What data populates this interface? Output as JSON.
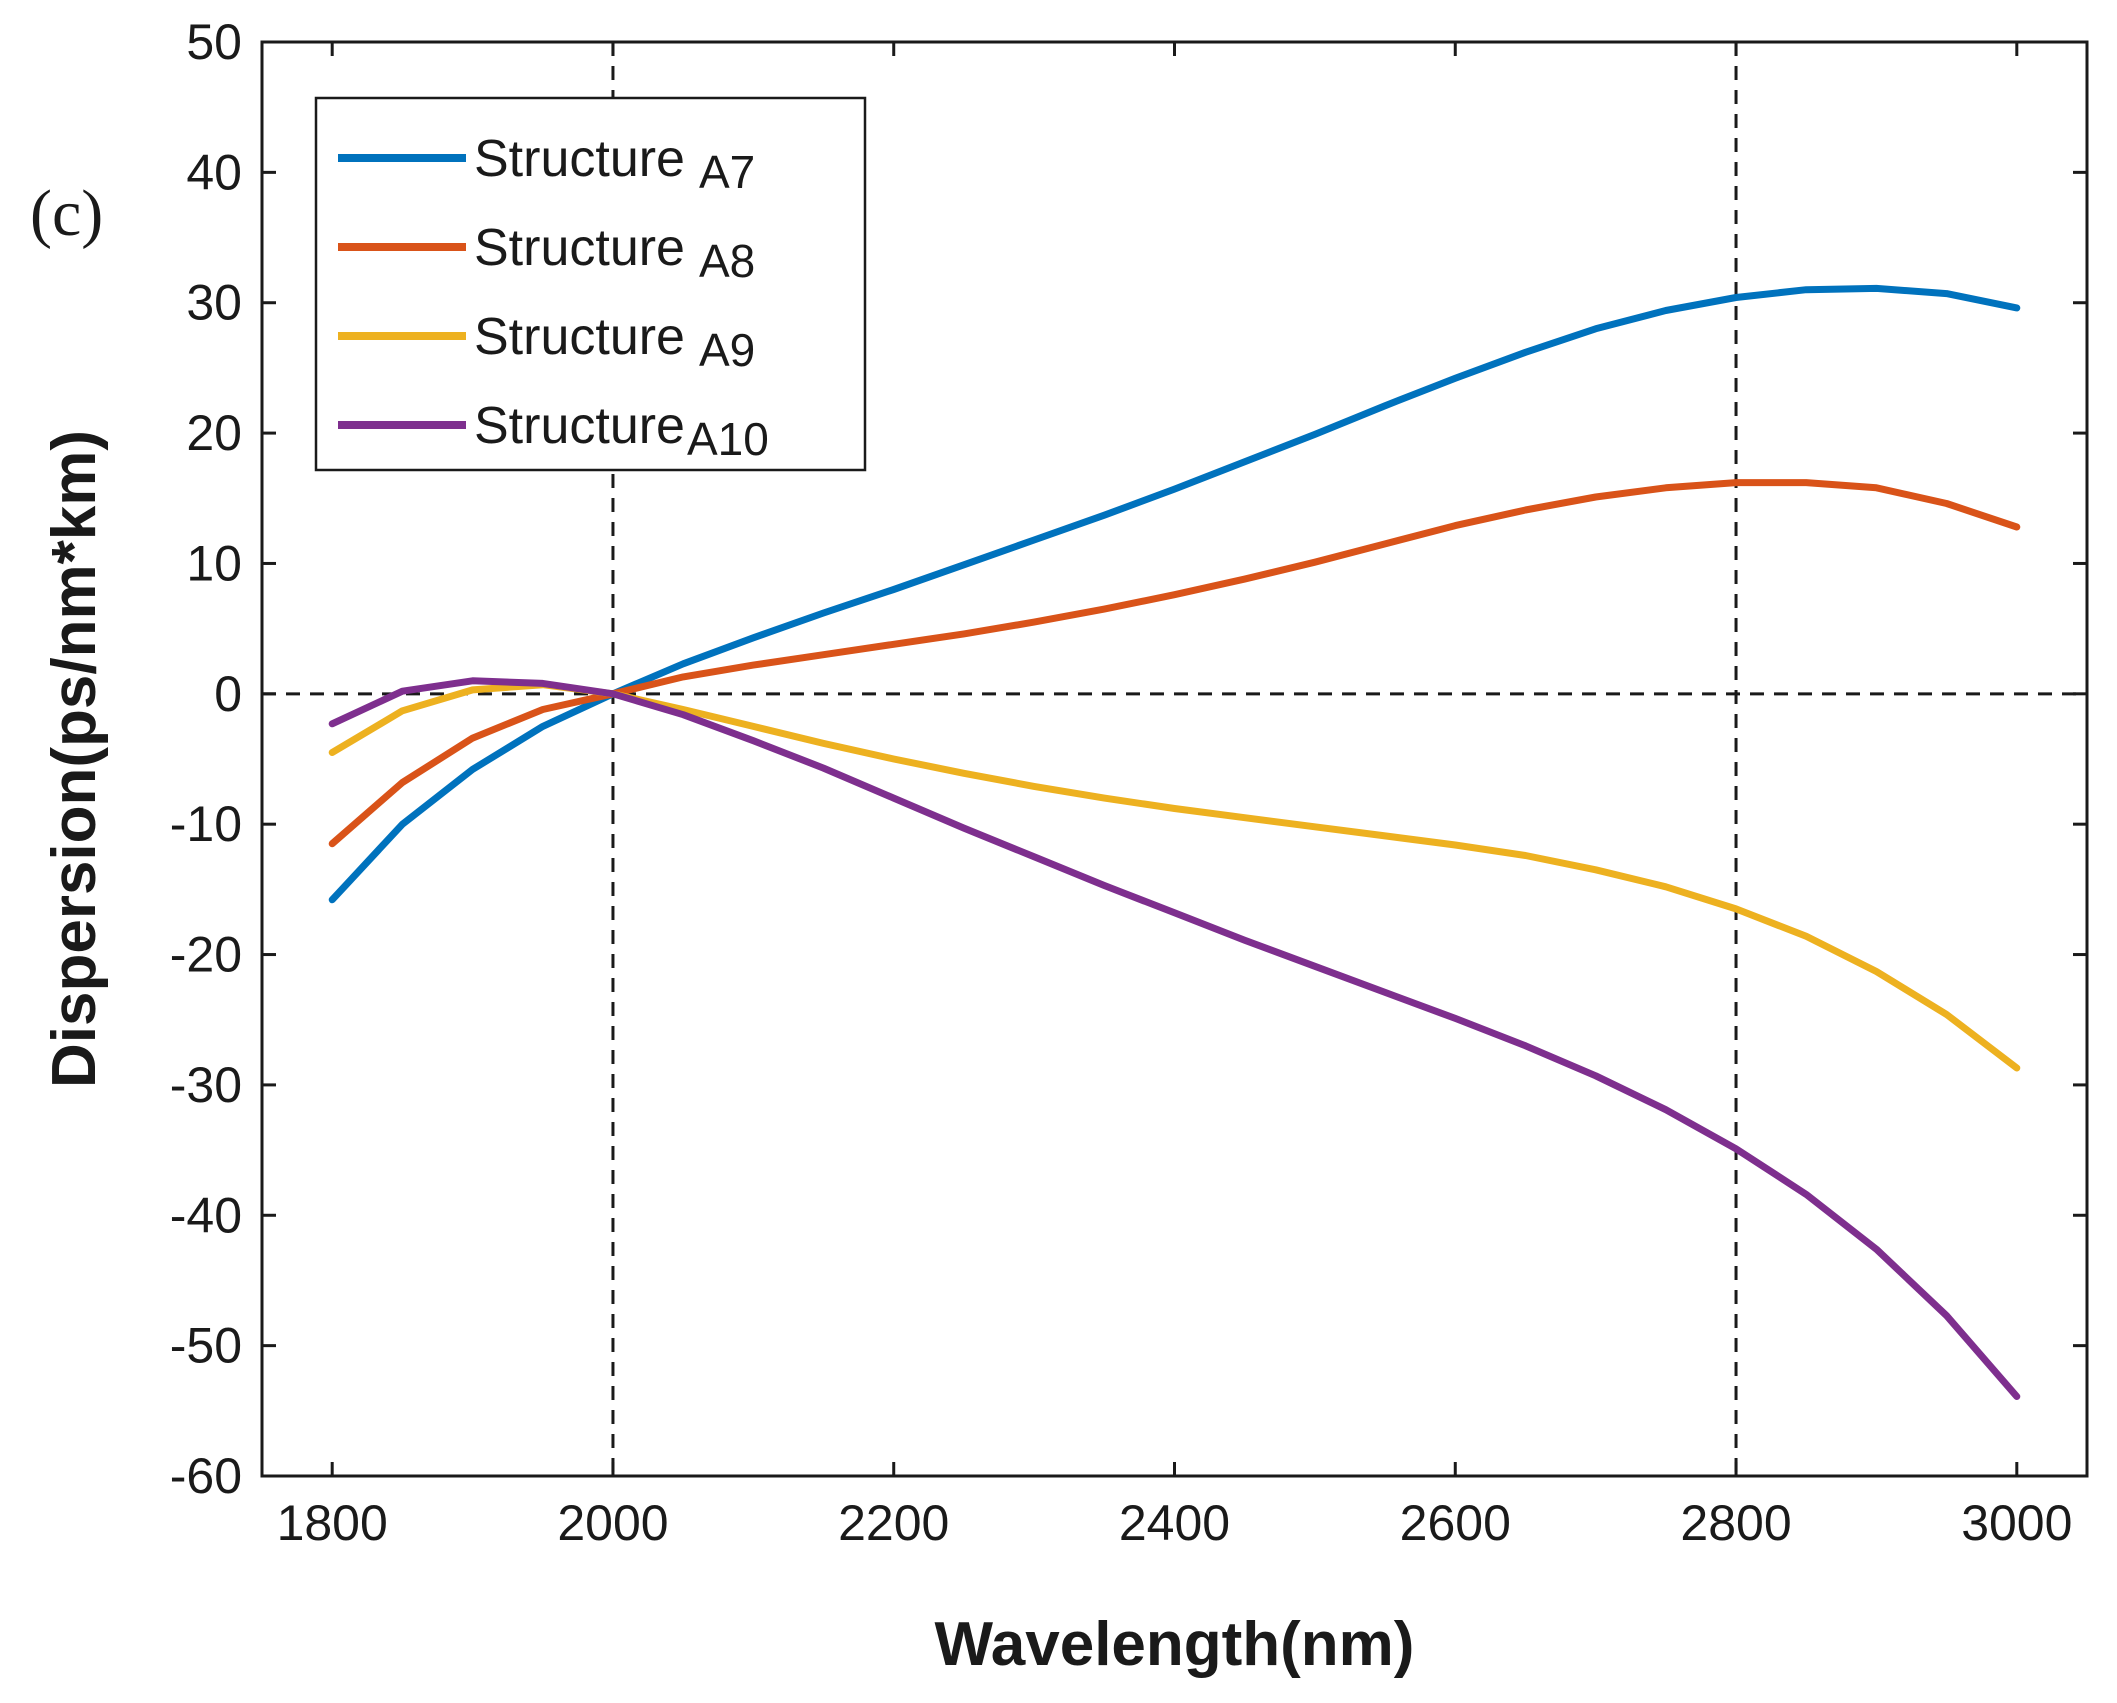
{
  "chart_data": {
    "type": "line",
    "panel_label": "(c)",
    "title": "",
    "xlabel": "Wavelength(nm)",
    "ylabel": "Dispersion(ps/nm*km)",
    "xlim": [
      1750,
      3050
    ],
    "ylim": [
      -60,
      50
    ],
    "x_ticks": [
      "1800",
      "2000",
      "2200",
      "2400",
      "2600",
      "2800",
      "3000"
    ],
    "y_ticks": [
      "50",
      "40",
      "30",
      "20",
      "10",
      "0",
      "-10",
      "-20",
      "-30",
      "-40",
      "-50",
      "-60"
    ],
    "grid": false,
    "legend_position": "top-left",
    "reference_lines": {
      "vertical_x": [
        2000,
        2800
      ],
      "horizontal_y": [
        0
      ],
      "style": "dashed"
    },
    "x": [
      1800,
      1850,
      1900,
      1950,
      2000,
      2050,
      2100,
      2150,
      2200,
      2250,
      2300,
      2350,
      2400,
      2450,
      2500,
      2550,
      2600,
      2650,
      2700,
      2750,
      2800,
      2850,
      2900,
      2950,
      3000
    ],
    "series": [
      {
        "label_prefix": "Structure",
        "label_suffix": "A7",
        "color": "#0072bd",
        "values": [
          -15.8,
          -10.0,
          -5.8,
          -2.5,
          0.0,
          2.3,
          4.3,
          6.2,
          8.0,
          9.9,
          11.8,
          13.7,
          15.7,
          17.8,
          19.9,
          22.1,
          24.2,
          26.2,
          28.0,
          29.4,
          30.4,
          31.0,
          31.1,
          30.7,
          29.6
        ]
      },
      {
        "label_prefix": "Structure",
        "label_suffix": "A8",
        "color": "#d95319",
        "values": [
          -11.5,
          -6.8,
          -3.4,
          -1.2,
          0.0,
          1.3,
          2.2,
          3.0,
          3.8,
          4.6,
          5.5,
          6.5,
          7.6,
          8.8,
          10.1,
          11.5,
          12.9,
          14.1,
          15.1,
          15.8,
          16.2,
          16.2,
          15.8,
          14.6,
          12.8
        ]
      },
      {
        "label_prefix": "Structure",
        "label_suffix": "A9",
        "color": "#edb120",
        "values": [
          -4.5,
          -1.3,
          0.3,
          0.7,
          0.0,
          -1.2,
          -2.5,
          -3.8,
          -5.0,
          -6.1,
          -7.1,
          -8.0,
          -8.8,
          -9.5,
          -10.2,
          -10.9,
          -11.6,
          -12.4,
          -13.5,
          -14.8,
          -16.5,
          -18.6,
          -21.3,
          -24.6,
          -28.7
        ]
      },
      {
        "label_prefix": "Structure",
        "label_suffix": "A10",
        "color": "#7e2f8e",
        "values": [
          -2.3,
          0.2,
          1.0,
          0.8,
          0.0,
          -1.6,
          -3.6,
          -5.7,
          -8.0,
          -10.3,
          -12.5,
          -14.7,
          -16.8,
          -18.9,
          -20.9,
          -22.9,
          -24.9,
          -27.0,
          -29.3,
          -31.9,
          -34.9,
          -38.4,
          -42.6,
          -47.7,
          -53.9
        ]
      }
    ]
  }
}
